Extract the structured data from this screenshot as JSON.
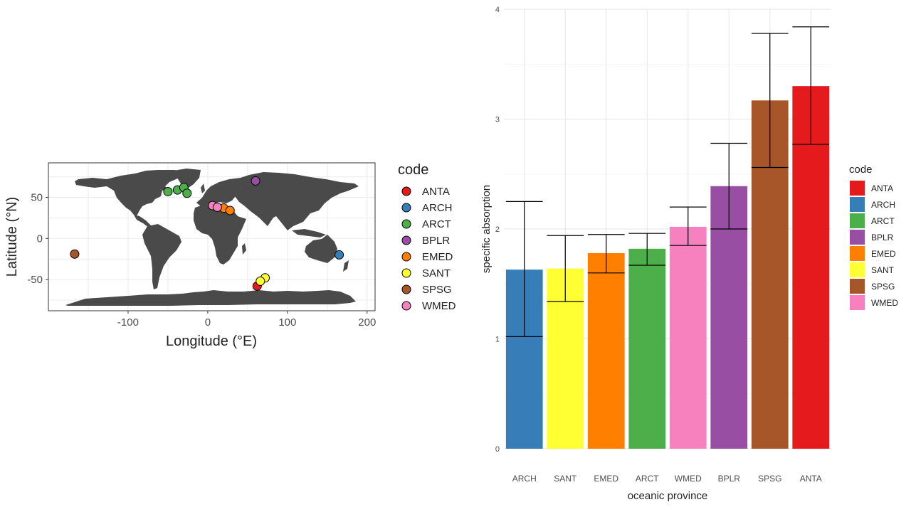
{
  "chart_data": [
    {
      "type": "scatter",
      "xlabel": "Longitude (°E)",
      "ylabel": "Latitude (°N)",
      "xlim": [
        -200,
        210
      ],
      "ylim": [
        -88,
        92
      ],
      "x_ticks": [
        -100,
        0,
        100,
        200
      ],
      "y_ticks": [
        -50,
        0,
        50
      ],
      "grid": true,
      "legend": {
        "title": "code",
        "position": "right",
        "entries": [
          "ANTA",
          "ARCH",
          "ARCT",
          "BPLR",
          "EMED",
          "SANT",
          "SPSG",
          "WMED"
        ]
      },
      "points": [
        {
          "code": "ANTA",
          "lon": 62,
          "lat": -58
        },
        {
          "code": "ARCH",
          "lon": 165,
          "lat": -20
        },
        {
          "code": "ARCT",
          "lon": -50,
          "lat": 57
        },
        {
          "code": "ARCT",
          "lon": -38,
          "lat": 59
        },
        {
          "code": "ARCT",
          "lon": -30,
          "lat": 62
        },
        {
          "code": "ARCT",
          "lon": -26,
          "lat": 55
        },
        {
          "code": "BPLR",
          "lon": 60,
          "lat": 70
        },
        {
          "code": "EMED",
          "lon": 20,
          "lat": 37
        },
        {
          "code": "EMED",
          "lon": 28,
          "lat": 34
        },
        {
          "code": "SANT",
          "lon": 72,
          "lat": -48
        },
        {
          "code": "SANT",
          "lon": 66,
          "lat": -52
        },
        {
          "code": "SPSG",
          "lon": -167,
          "lat": -19
        },
        {
          "code": "WMED",
          "lon": 6,
          "lat": 40
        },
        {
          "code": "WMED",
          "lon": 12,
          "lat": 38
        }
      ]
    },
    {
      "type": "bar",
      "xlabel": "oceanic province",
      "ylabel": "specific absorption",
      "ylim": [
        0,
        4
      ],
      "y_ticks": [
        0,
        1,
        2,
        3,
        4
      ],
      "grid": true,
      "categories": [
        "ARCH",
        "SANT",
        "EMED",
        "ARCT",
        "WMED",
        "BPLR",
        "SPSG",
        "ANTA"
      ],
      "values": [
        1.63,
        1.64,
        1.78,
        1.82,
        2.02,
        2.39,
        3.17,
        3.3
      ],
      "error_low": [
        1.02,
        1.34,
        1.6,
        1.67,
        1.85,
        2.0,
        2.56,
        2.77
      ],
      "error_high": [
        2.25,
        1.94,
        1.95,
        1.96,
        2.2,
        2.78,
        3.78,
        3.84
      ],
      "legend": {
        "title": "code",
        "position": "right",
        "entries": [
          "ANTA",
          "ARCH",
          "ARCT",
          "BPLR",
          "EMED",
          "SANT",
          "SPSG",
          "WMED"
        ]
      }
    }
  ],
  "colors": {
    "ANTA": "#E41A1C",
    "ARCH": "#377EB8",
    "ARCT": "#4DAF4A",
    "BPLR": "#984EA3",
    "EMED": "#FF7F00",
    "SANT": "#FFFF33",
    "SPSG": "#A65628",
    "WMED": "#F781BF",
    "land": "#4A4A4A",
    "grid": "#EBEBEB"
  }
}
